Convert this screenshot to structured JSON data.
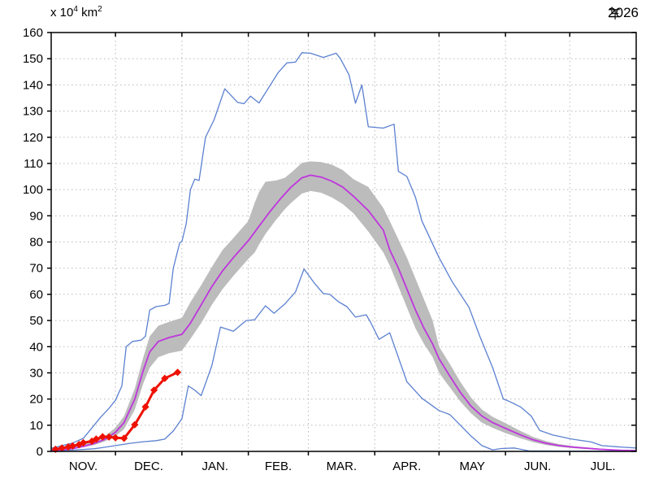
{
  "header": {
    "title": "2026年",
    "year": "2026",
    "year_suffix_kanji": "年"
  },
  "axes": {
    "y_unit": {
      "prefix": "x 10",
      "sup1": "4",
      "mid": " km",
      "sup2": "2",
      "full": "x 10^4 km^2"
    },
    "y_ticks": [
      0,
      10,
      20,
      30,
      40,
      50,
      60,
      70,
      80,
      90,
      100,
      110,
      120,
      130,
      140,
      150,
      160
    ],
    "y_range": [
      0,
      160
    ],
    "x_month_labels": [
      "NOV.",
      "DEC.",
      "JAN.",
      "FEB.",
      "MAR.",
      "APR.",
      "MAY",
      "JUN.",
      "JUL."
    ],
    "x_month_days": [
      30,
      31,
      31,
      28,
      31,
      30,
      31,
      30,
      31
    ]
  },
  "chart_data": {
    "type": "line",
    "title": "2026年",
    "ylabel": "x 10^4 km^2",
    "ylim": [
      0,
      160
    ],
    "grid": "dotted gray at every 10 units (y) and month boundaries (x)",
    "x_axis": {
      "start": "Nov 1",
      "end": "Jul 31",
      "units": "day offset from Nov 1",
      "total_days": 273
    },
    "band": {
      "name": "normal-range",
      "color": "#bcbcbc",
      "points": [
        [
          0,
          0.2,
          0.6
        ],
        [
          10,
          0.8,
          1.6
        ],
        [
          20,
          2.4,
          4
        ],
        [
          25,
          3.8,
          5.8
        ],
        [
          30,
          5.8,
          9
        ],
        [
          34,
          8.5,
          13.5
        ],
        [
          39,
          16,
          24
        ],
        [
          43,
          26,
          36
        ],
        [
          46,
          32,
          44
        ],
        [
          50,
          36,
          48
        ],
        [
          55,
          37.5,
          49.5
        ],
        [
          61,
          38.5,
          51
        ],
        [
          65,
          43,
          57
        ],
        [
          70,
          49,
          63.5
        ],
        [
          75,
          56,
          70.5
        ],
        [
          80,
          62,
          77
        ],
        [
          85,
          67,
          81.5
        ],
        [
          92,
          73.5,
          88
        ],
        [
          95,
          76,
          95
        ],
        [
          97,
          79,
          99
        ],
        [
          100,
          83,
          103
        ],
        [
          105,
          88.5,
          103.5
        ],
        [
          109,
          92.5,
          104.5
        ],
        [
          112,
          95,
          106.5
        ],
        [
          117,
          98.5,
          110.2
        ],
        [
          121,
          99.5,
          110.8
        ],
        [
          126,
          98.8,
          110.5
        ],
        [
          131,
          97,
          109.5
        ],
        [
          136,
          94.5,
          107.5
        ],
        [
          141,
          91,
          104
        ],
        [
          148,
          84,
          101
        ],
        [
          155,
          76,
          93
        ],
        [
          158,
          71,
          88
        ],
        [
          162,
          63,
          81
        ],
        [
          166,
          55,
          74
        ],
        [
          170,
          47,
          66
        ],
        [
          174,
          41,
          58
        ],
        [
          178,
          36,
          50
        ],
        [
          181,
          30,
          40
        ],
        [
          186,
          24.5,
          33.5
        ],
        [
          191,
          19,
          26.5
        ],
        [
          196,
          14.5,
          20.5
        ],
        [
          201,
          11,
          16
        ],
        [
          206,
          9,
          13.2
        ],
        [
          212,
          7,
          10.8
        ],
        [
          219,
          5,
          7.8
        ],
        [
          225,
          3.5,
          5.5
        ],
        [
          231,
          2.4,
          3.9
        ],
        [
          237,
          1.7,
          2.8
        ],
        [
          244,
          1.2,
          2
        ],
        [
          256,
          0.5,
          1.1
        ],
        [
          266,
          0.25,
          0.6
        ],
        [
          273,
          0.15,
          0.45
        ]
      ]
    },
    "series": [
      {
        "name": "maximum",
        "color": "#5b80d0",
        "width": 1.3,
        "points": [
          [
            0,
            1.2
          ],
          [
            5,
            2.2
          ],
          [
            10,
            3.2
          ],
          [
            15,
            5
          ],
          [
            18,
            8
          ],
          [
            23,
            13
          ],
          [
            27,
            16.5
          ],
          [
            30,
            19.5
          ],
          [
            33,
            25
          ],
          [
            35,
            40
          ],
          [
            38,
            42
          ],
          [
            42,
            42.5
          ],
          [
            44,
            44
          ],
          [
            46,
            54
          ],
          [
            49,
            55.3
          ],
          [
            53,
            55.8
          ],
          [
            55,
            56.5
          ],
          [
            57,
            70
          ],
          [
            60,
            79.7
          ],
          [
            61,
            80.2
          ],
          [
            63,
            87
          ],
          [
            65,
            100
          ],
          [
            67,
            104
          ],
          [
            69,
            103.5
          ],
          [
            72,
            120
          ],
          [
            76,
            126.6
          ],
          [
            81,
            138.5
          ],
          [
            87,
            133.3
          ],
          [
            90,
            132.8
          ],
          [
            93,
            135.7
          ],
          [
            97,
            133.1
          ],
          [
            102,
            139.6
          ],
          [
            106,
            144.8
          ],
          [
            110,
            148.4
          ],
          [
            114,
            148.7
          ],
          [
            117,
            152.3
          ],
          [
            121,
            152.1
          ],
          [
            127,
            150.5
          ],
          [
            130,
            151.3
          ],
          [
            133,
            152.1
          ],
          [
            135,
            150
          ],
          [
            139,
            143.8
          ],
          [
            142,
            133
          ],
          [
            145,
            140
          ],
          [
            148,
            124
          ],
          [
            155,
            123.5
          ],
          [
            160,
            125
          ],
          [
            162,
            107
          ],
          [
            166,
            105
          ],
          [
            170,
            97
          ],
          [
            173,
            88
          ],
          [
            181,
            74
          ],
          [
            187,
            65
          ],
          [
            195,
            55
          ],
          [
            200,
            44
          ],
          [
            206,
            32
          ],
          [
            211,
            20
          ],
          [
            214,
            19
          ],
          [
            219,
            17
          ],
          [
            224,
            13.5
          ],
          [
            228,
            8
          ],
          [
            234,
            6.3
          ],
          [
            243,
            4.7
          ],
          [
            252,
            3.6
          ],
          [
            257,
            2.2
          ],
          [
            267,
            1.6
          ],
          [
            273,
            1.3
          ]
        ]
      },
      {
        "name": "minimum",
        "color": "#5b80d0",
        "width": 1.3,
        "points": [
          [
            0,
            0.2
          ],
          [
            10,
            0.5
          ],
          [
            20,
            1
          ],
          [
            30,
            2.2
          ],
          [
            37,
            3.1
          ],
          [
            43,
            3.7
          ],
          [
            49,
            4.1
          ],
          [
            53,
            4.7
          ],
          [
            57,
            7.8
          ],
          [
            61,
            12.5
          ],
          [
            64,
            25
          ],
          [
            67,
            23.4
          ],
          [
            70,
            21.3
          ],
          [
            75,
            32.8
          ],
          [
            79,
            47.5
          ],
          [
            85,
            45.9
          ],
          [
            91,
            50
          ],
          [
            95,
            50.3
          ],
          [
            100,
            55.6
          ],
          [
            104,
            52.8
          ],
          [
            109,
            56.3
          ],
          [
            114,
            60.9
          ],
          [
            118,
            69.7
          ],
          [
            123,
            64.1
          ],
          [
            127,
            60.3
          ],
          [
            130,
            60
          ],
          [
            134,
            57.2
          ],
          [
            138,
            55.3
          ],
          [
            142,
            51.3
          ],
          [
            147,
            52.2
          ],
          [
            149,
            49.4
          ],
          [
            153,
            42.8
          ],
          [
            158,
            45.3
          ],
          [
            166,
            26.6
          ],
          [
            173,
            20.3
          ],
          [
            181,
            15.6
          ],
          [
            186,
            14.1
          ],
          [
            191,
            10
          ],
          [
            196,
            5.8
          ],
          [
            201,
            2.2
          ],
          [
            206,
            0.6
          ],
          [
            210,
            1.1
          ],
          [
            216,
            1.3
          ],
          [
            223,
            0.2
          ],
          [
            240,
            0.1
          ],
          [
            273,
            0.1
          ]
        ]
      },
      {
        "name": "normal-mean",
        "color": "#bf35dd",
        "width": 1.8,
        "points": [
          [
            0,
            0.3
          ],
          [
            5,
            0.6
          ],
          [
            10,
            1.1
          ],
          [
            15,
            1.9
          ],
          [
            20,
            3
          ],
          [
            25,
            4.6
          ],
          [
            30,
            7.3
          ],
          [
            34,
            11
          ],
          [
            39,
            20
          ],
          [
            43,
            31
          ],
          [
            46,
            38
          ],
          [
            50,
            42
          ],
          [
            55,
            43.5
          ],
          [
            61,
            44.7
          ],
          [
            65,
            49
          ],
          [
            70,
            56
          ],
          [
            75,
            63
          ],
          [
            80,
            69
          ],
          [
            85,
            74
          ],
          [
            92,
            80.5
          ],
          [
            97,
            86
          ],
          [
            102,
            91.5
          ],
          [
            107,
            96.5
          ],
          [
            112,
            101
          ],
          [
            117,
            104.5
          ],
          [
            121,
            105.5
          ],
          [
            126,
            104.8
          ],
          [
            131,
            103.2
          ],
          [
            136,
            101
          ],
          [
            141,
            97.5
          ],
          [
            148,
            92
          ],
          [
            155,
            84.5
          ],
          [
            158,
            77
          ],
          [
            162,
            70
          ],
          [
            166,
            62
          ],
          [
            170,
            54
          ],
          [
            174,
            47
          ],
          [
            178,
            41
          ],
          [
            181,
            35.4
          ],
          [
            186,
            28.8
          ],
          [
            191,
            22.5
          ],
          [
            196,
            17.2
          ],
          [
            201,
            13.5
          ],
          [
            206,
            11
          ],
          [
            212,
            8.8
          ],
          [
            219,
            6.3
          ],
          [
            225,
            4.4
          ],
          [
            231,
            3.1
          ],
          [
            237,
            2.2
          ],
          [
            244,
            1.6
          ],
          [
            256,
            0.8
          ],
          [
            266,
            0.4
          ],
          [
            273,
            0.3
          ]
        ]
      },
      {
        "name": "observed-2026",
        "color": "#ee1100",
        "width": 3,
        "marker": "diamond",
        "points": [
          [
            2,
            0.8
          ],
          [
            5,
            1.3
          ],
          [
            8,
            1.7
          ],
          [
            10,
            2.1
          ],
          [
            13,
            2.6
          ],
          [
            15,
            3.3
          ],
          [
            19,
            3.9
          ],
          [
            21,
            4.7
          ],
          [
            24,
            5.6
          ],
          [
            27,
            5.5
          ],
          [
            30,
            5.2
          ],
          [
            34,
            5.0
          ],
          [
            39,
            10.2
          ],
          [
            44,
            17.0
          ],
          [
            48,
            23.4
          ],
          [
            53,
            27.9
          ],
          [
            59,
            30.2
          ]
        ]
      }
    ]
  },
  "colors": {
    "background": "#ffffff",
    "frame": "#000000",
    "grid": "#b8b8b8",
    "band": "#bcbcbc",
    "envelope_blue": "#5b80d0",
    "normal_magenta": "#bf35dd",
    "observed_red": "#ee1100",
    "text": "#000000"
  }
}
